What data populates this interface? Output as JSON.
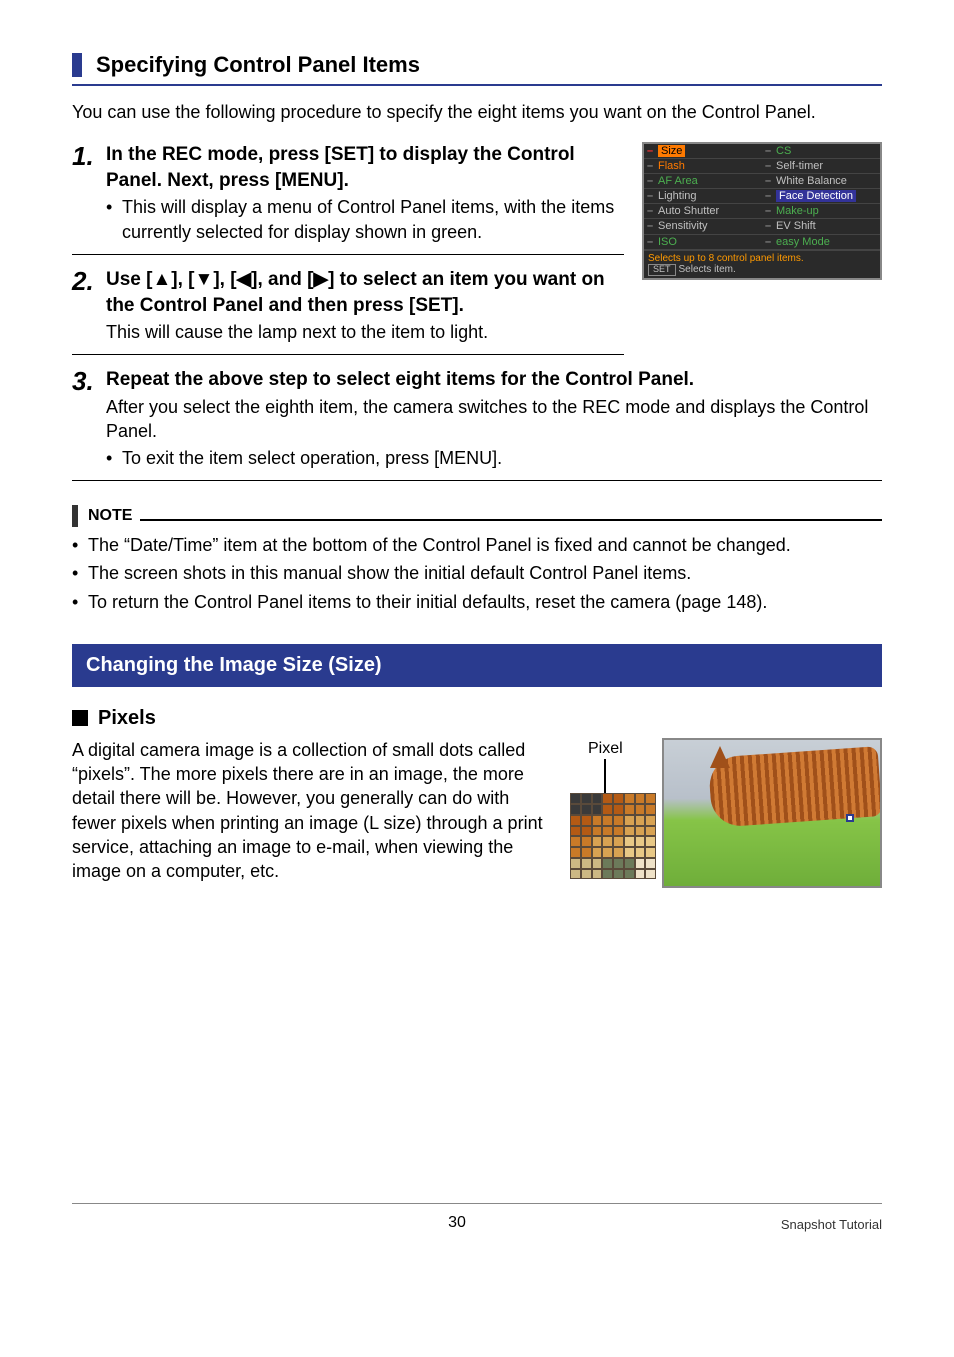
{
  "subheading": "Specifying Control Panel Items",
  "intro": "You can use the following procedure to specify the eight items you want on the Control Panel.",
  "steps": [
    {
      "num": "1.",
      "title": "In the REC mode, press [SET] to display the Control Panel. Next, press [MENU].",
      "bullets": [
        "This will display a menu of Control Panel items, with the items currently selected for display shown in green."
      ]
    },
    {
      "num": "2.",
      "title_pre": "Use [",
      "title_mid1": "], [",
      "title_mid2": "], [",
      "title_mid3": "], and [",
      "title_post": "] to select an item you want on the Control Panel and then press [SET].",
      "detail": "This will cause the lamp next to the item to light."
    },
    {
      "num": "3.",
      "title": "Repeat the above step to select eight items for the Control Panel.",
      "detail": "After you select the eighth item, the camera switches to the REC mode and displays the Control Panel.",
      "bullets": [
        "To exit the item select operation, press [MENU]."
      ]
    }
  ],
  "camera_panel": {
    "left": [
      {
        "label": "Size",
        "cls": "size",
        "dash": "red"
      },
      {
        "label": "Flash",
        "cls": "sel",
        "dash": "grey"
      },
      {
        "label": "AF Area",
        "cls": "grn",
        "dash": "grey"
      },
      {
        "label": "Lighting",
        "cls": "",
        "dash": "grey"
      },
      {
        "label": "Auto Shutter",
        "cls": "",
        "dash": "grey"
      },
      {
        "label": "Sensitivity",
        "cls": "",
        "dash": "grey"
      },
      {
        "label": "ISO",
        "cls": "grn",
        "dash": "grey"
      }
    ],
    "right": [
      {
        "label": "CS",
        "cls": "grn",
        "dash": "grey"
      },
      {
        "label": "Self-timer",
        "cls": "",
        "dash": "grey"
      },
      {
        "label": "White Balance",
        "cls": "",
        "dash": "grey"
      },
      {
        "label": "Face Detection",
        "cls": "hl",
        "dash": "grey"
      },
      {
        "label": "Make-up",
        "cls": "grn",
        "dash": "grey"
      },
      {
        "label": "EV Shift",
        "cls": "",
        "dash": "grey"
      },
      {
        "label": "easy Mode",
        "cls": "grn",
        "dash": "grey"
      }
    ],
    "bottom1": "Selects up to 8 control panel items.",
    "bottom2_set": "SET",
    "bottom2_txt": "Selects item."
  },
  "note": {
    "label": "NOTE",
    "items": [
      "The “Date/Time” item at the bottom of the Control Panel is fixed and cannot be changed.",
      "The screen shots in this manual show the initial default Control Panel items.",
      "To return the Control Panel items to their initial defaults, reset the camera (page 148)."
    ]
  },
  "section_title": "Changing the Image Size (Size)",
  "pixels": {
    "heading": "Pixels",
    "label": "Pixel",
    "text": "A digital camera image is a collection of small dots called “pixels”. The more pixels there are in an image, the more detail there will be. However, you generally can do with fewer pixels when printing an image (L size) through a print service, attaching an image to e-mail, when viewing the image on a computer, etc."
  },
  "pixel_grid_colors": [
    "#3a3a3a",
    "#b45a14",
    "#c97a28",
    "#d8a252",
    "#e8c886",
    "#ccb884",
    "#6c7a5a",
    "#efe2c8"
  ],
  "footer": {
    "page": "30",
    "title": "Snapshot Tutorial"
  },
  "arrows": {
    "up": "▲",
    "down": "▼",
    "left": "◀",
    "right": "▶"
  }
}
